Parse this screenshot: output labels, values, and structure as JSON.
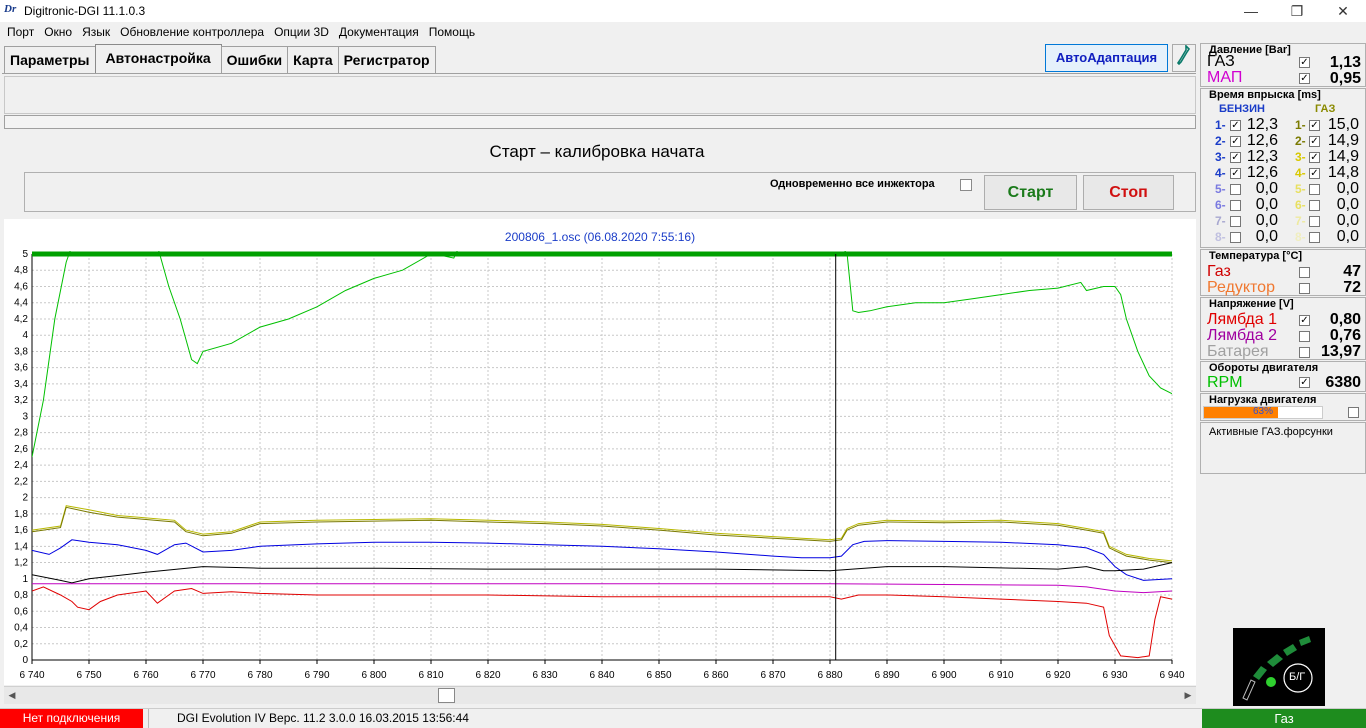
{
  "window": {
    "logo": "Dr",
    "title": "Digitronic-DGI  11.1.0.3",
    "minimize": "—",
    "maximize": "❐",
    "close": "✕"
  },
  "menu": [
    "Порт",
    "Окно",
    "Язык",
    "Обновление контроллера",
    "Опции 3D",
    "Документация",
    "Помощь"
  ],
  "tabs": [
    {
      "label": "Параметры",
      "active": false
    },
    {
      "label": "Автонастройка",
      "active": true
    },
    {
      "label": "Ошибки",
      "active": false
    },
    {
      "label": "Карта",
      "active": false
    },
    {
      "label": "Регистратор",
      "active": false
    }
  ],
  "toolbar": {
    "autoadapt_label": "АвтоАдаптация",
    "help_icon": "wrench-icon"
  },
  "calibration": {
    "status": "Старт – калибровка начата",
    "simul_label": "Одновременно все инжектора",
    "simul_checked": false,
    "start_label": "Старт",
    "stop_label": "Стоп"
  },
  "chart_data": {
    "type": "line",
    "title": "200806_1.osc  (06.08.2020 7:55:16)",
    "xlim": [
      6740,
      6940
    ],
    "ylim": [
      0,
      5
    ],
    "xticks": [
      6740,
      6750,
      6760,
      6770,
      6780,
      6790,
      6800,
      6810,
      6820,
      6830,
      6840,
      6850,
      6860,
      6870,
      6880,
      6890,
      6900,
      6910,
      6920,
      6930,
      6940
    ],
    "xtick_labels": [
      "6 740",
      "6 750",
      "6 760",
      "6 770",
      "6 780",
      "6 790",
      "6 800",
      "6 810",
      "6 820",
      "6 830",
      "6 840",
      "6 850",
      "6 860",
      "6 870",
      "6 880",
      "6 890",
      "6 900",
      "6 910",
      "6 920",
      "6 930",
      "6 940"
    ],
    "yticks": [
      0,
      0.2,
      0.4,
      0.6,
      0.8,
      1,
      1.2,
      1.4,
      1.6,
      1.8,
      2,
      2.2,
      2.4,
      2.6,
      2.8,
      3,
      3.2,
      3.4,
      3.6,
      3.8,
      4,
      4.2,
      4.4,
      4.6,
      4.8,
      5
    ],
    "ytick_labels": [
      "0",
      "0,2",
      "0,4",
      "0,6",
      "0,8",
      "1",
      "1,2",
      "1,4",
      "1,6",
      "1,8",
      "2",
      "2,2",
      "2,4",
      "2,6",
      "2,8",
      "3",
      "3,2",
      "3,4",
      "3,6",
      "3,8",
      "4",
      "4,2",
      "4,4",
      "4,6",
      "4,8",
      "5"
    ],
    "grid": true,
    "cursor_x": 6881,
    "series": [
      {
        "color": "#00c000",
        "width": 1,
        "x": [
          6740,
          6742,
          6744,
          6746,
          6747,
          6760,
          6762,
          6764,
          6766,
          6768,
          6769,
          6770,
          6775,
          6780,
          6785,
          6790,
          6795,
          6800,
          6805,
          6810,
          6812,
          6814,
          6815,
          6820,
          6825,
          6830,
          6840,
          6850,
          6860,
          6870,
          6880,
          6881,
          6882,
          6883,
          6884,
          6885,
          6887,
          6890,
          6895,
          6900,
          6905,
          6910,
          6915,
          6920,
          6924,
          6925,
          6928,
          6930,
          6931,
          6932,
          6934,
          6936,
          6938,
          6940
        ],
        "y": [
          2.5,
          3.2,
          4.2,
          4.9,
          5.1,
          5.1,
          5.1,
          4.6,
          4.2,
          3.7,
          3.65,
          3.8,
          3.9,
          4.1,
          4.2,
          4.35,
          4.55,
          4.7,
          4.8,
          5.0,
          4.98,
          4.95,
          5.1,
          5.1,
          5.1,
          5.1,
          5.1,
          5.1,
          5.1,
          5.1,
          5.1,
          5.1,
          5.1,
          5.0,
          4.3,
          4.28,
          4.3,
          4.35,
          4.4,
          4.4,
          4.45,
          4.5,
          4.55,
          4.58,
          4.65,
          4.55,
          4.6,
          4.6,
          4.5,
          4.2,
          3.8,
          3.5,
          3.35,
          3.28
        ]
      },
      {
        "color": "#00a000",
        "width": 5,
        "x": [
          6740,
          6940
        ],
        "y": [
          5.0,
          5.0
        ]
      },
      {
        "color": "#b8b800",
        "width": 1,
        "x": [
          6740,
          6742,
          6745,
          6746,
          6750,
          6755,
          6760,
          6765,
          6767,
          6770,
          6775,
          6780,
          6790,
          6800,
          6810,
          6820,
          6830,
          6840,
          6850,
          6860,
          6870,
          6875,
          6880,
          6882,
          6883,
          6885,
          6890,
          6900,
          6910,
          6920,
          6925,
          6928,
          6929,
          6932,
          6936,
          6940
        ],
        "y": [
          1.6,
          1.62,
          1.65,
          1.9,
          1.85,
          1.78,
          1.75,
          1.72,
          1.6,
          1.55,
          1.58,
          1.7,
          1.72,
          1.73,
          1.74,
          1.72,
          1.7,
          1.67,
          1.62,
          1.56,
          1.52,
          1.5,
          1.48,
          1.5,
          1.62,
          1.68,
          1.72,
          1.71,
          1.72,
          1.68,
          1.62,
          1.58,
          1.4,
          1.3,
          1.25,
          1.22
        ]
      },
      {
        "color": "#7a7a00",
        "width": 1,
        "x": [
          6740,
          6742,
          6745,
          6746,
          6750,
          6755,
          6760,
          6765,
          6767,
          6770,
          6775,
          6780,
          6790,
          6800,
          6810,
          6820,
          6830,
          6840,
          6850,
          6860,
          6870,
          6875,
          6880,
          6882,
          6883,
          6885,
          6890,
          6900,
          6910,
          6920,
          6925,
          6928,
          6929,
          6932,
          6936,
          6940
        ],
        "y": [
          1.58,
          1.6,
          1.63,
          1.88,
          1.82,
          1.76,
          1.73,
          1.7,
          1.58,
          1.53,
          1.56,
          1.68,
          1.7,
          1.71,
          1.72,
          1.7,
          1.68,
          1.65,
          1.6,
          1.54,
          1.5,
          1.48,
          1.46,
          1.48,
          1.6,
          1.66,
          1.7,
          1.69,
          1.7,
          1.66,
          1.6,
          1.56,
          1.38,
          1.28,
          1.23,
          1.2
        ]
      },
      {
        "color": "#0000e0",
        "width": 1,
        "x": [
          6740,
          6743,
          6745,
          6747,
          6750,
          6755,
          6760,
          6762,
          6765,
          6767,
          6770,
          6775,
          6780,
          6790,
          6800,
          6810,
          6820,
          6830,
          6840,
          6850,
          6860,
          6870,
          6875,
          6880,
          6882,
          6884,
          6886,
          6890,
          6900,
          6910,
          6920,
          6925,
          6928,
          6930,
          6932,
          6935,
          6940
        ],
        "y": [
          1.35,
          1.3,
          1.38,
          1.48,
          1.45,
          1.42,
          1.35,
          1.3,
          1.42,
          1.44,
          1.33,
          1.35,
          1.4,
          1.43,
          1.45,
          1.45,
          1.44,
          1.42,
          1.4,
          1.37,
          1.33,
          1.28,
          1.26,
          1.26,
          1.28,
          1.42,
          1.46,
          1.47,
          1.46,
          1.45,
          1.42,
          1.38,
          1.3,
          1.15,
          1.05,
          0.98,
          1.0
        ]
      },
      {
        "color": "#000000",
        "width": 1,
        "x": [
          6740,
          6745,
          6747,
          6750,
          6760,
          6770,
          6780,
          6800,
          6820,
          6840,
          6860,
          6880,
          6890,
          6900,
          6920,
          6925,
          6928,
          6930,
          6935,
          6940
        ],
        "y": [
          1.05,
          0.98,
          0.95,
          1.0,
          1.08,
          1.15,
          1.13,
          1.13,
          1.12,
          1.12,
          1.12,
          1.1,
          1.15,
          1.15,
          1.12,
          1.15,
          1.1,
          1.1,
          1.12,
          1.2
        ]
      },
      {
        "color": "#c000c0",
        "width": 1,
        "x": [
          6740,
          6760,
          6780,
          6800,
          6820,
          6840,
          6860,
          6880,
          6900,
          6920,
          6925,
          6930,
          6935,
          6940
        ],
        "y": [
          0.94,
          0.94,
          0.94,
          0.94,
          0.94,
          0.94,
          0.94,
          0.94,
          0.93,
          0.92,
          0.9,
          0.85,
          0.83,
          0.85
        ]
      },
      {
        "color": "#e00000",
        "width": 1,
        "x": [
          6740,
          6742,
          6745,
          6747,
          6748,
          6750,
          6752,
          6755,
          6760,
          6762,
          6764,
          6765,
          6768,
          6770,
          6775,
          6780,
          6790,
          6800,
          6810,
          6820,
          6840,
          6860,
          6880,
          6882,
          6885,
          6890,
          6900,
          6910,
          6920,
          6925,
          6928,
          6929,
          6931,
          6934,
          6936,
          6937,
          6938,
          6940
        ],
        "y": [
          0.85,
          0.9,
          0.8,
          0.72,
          0.65,
          0.62,
          0.72,
          0.8,
          0.85,
          0.7,
          0.8,
          0.85,
          0.88,
          0.82,
          0.84,
          0.82,
          0.8,
          0.8,
          0.8,
          0.8,
          0.78,
          0.78,
          0.78,
          0.75,
          0.8,
          0.8,
          0.78,
          0.75,
          0.72,
          0.7,
          0.65,
          0.3,
          0.05,
          0.03,
          0.05,
          0.5,
          0.78,
          0.75
        ]
      }
    ]
  },
  "status": {
    "connection": "Нет подключения",
    "firmware": "DGI Evolution IV  Верс. 11.2  3.0.0    16.03.2015 13:56:44",
    "fuel": "Газ"
  },
  "pressure": {
    "title": "Давление [Bar]",
    "gas_label": "ГАЗ",
    "gas_checked": true,
    "gas_value": "1,13",
    "map_label": "МАП",
    "map_checked": true,
    "map_value": "0,95"
  },
  "injection": {
    "title": "Время впрыска [ms]",
    "petrol_header": "БЕНЗИН",
    "gas_header": "ГАЗ",
    "petrol": [
      {
        "n": "1-",
        "checked": true,
        "v": "12,3"
      },
      {
        "n": "2-",
        "checked": true,
        "v": "12,6"
      },
      {
        "n": "3-",
        "checked": true,
        "v": "12,3"
      },
      {
        "n": "4-",
        "checked": true,
        "v": "12,6"
      },
      {
        "n": "5-",
        "checked": false,
        "v": "0,0"
      },
      {
        "n": "6-",
        "checked": false,
        "v": "0,0"
      },
      {
        "n": "7-",
        "checked": false,
        "v": "0,0"
      },
      {
        "n": "8-",
        "checked": false,
        "v": "0,0"
      }
    ],
    "gas": [
      {
        "n": "1-",
        "checked": true,
        "v": "15,0"
      },
      {
        "n": "2-",
        "checked": true,
        "v": "14,9"
      },
      {
        "n": "3-",
        "checked": true,
        "v": "14,9"
      },
      {
        "n": "4-",
        "checked": true,
        "v": "14,8"
      },
      {
        "n": "5-",
        "checked": false,
        "v": "0,0"
      },
      {
        "n": "6-",
        "checked": false,
        "v": "0,0"
      },
      {
        "n": "7-",
        "checked": false,
        "v": "0,0"
      },
      {
        "n": "8-",
        "checked": false,
        "v": "0,0"
      }
    ],
    "petrol_colors": [
      "#1a3cc8",
      "#1a3cc8",
      "#1a3cc8",
      "#1a3cc8",
      "#7a7ae0",
      "#7a7ae0",
      "#a8a8d0",
      "#c0c0e0"
    ],
    "gas_colors": [
      "#7a7a00",
      "#7a7a00",
      "#d8c800",
      "#d8c800",
      "#e8e060",
      "#e8e060",
      "#eeeaa0",
      "#f0eec0"
    ]
  },
  "temperature": {
    "title": "Температура [°C]",
    "gas_label": "Газ",
    "gas_checked": false,
    "gas_value": "47",
    "reducer_label": "Редуктор",
    "reducer_checked": false,
    "reducer_value": "72"
  },
  "voltage": {
    "title": "Напряжение [V]",
    "lambda1_label": "Лямбда 1",
    "lambda1_checked": true,
    "lambda1_value": "0,80",
    "lambda2_label": "Лямбда 2",
    "lambda2_checked": false,
    "lambda2_value": "0,76",
    "battery_label": "Батарея",
    "battery_checked": false,
    "battery_value": "13,97"
  },
  "rpm": {
    "title": "Обороты двигателя",
    "label": "RPM",
    "checked": true,
    "value": "6380"
  },
  "load": {
    "title": "Нагрузка двигателя",
    "percent_label": "63%",
    "fraction": 0.63,
    "checked": false
  },
  "active_injectors": {
    "title": "Активные ГАЗ.форсунки"
  },
  "logo_box": {
    "label": "Б/Г"
  }
}
